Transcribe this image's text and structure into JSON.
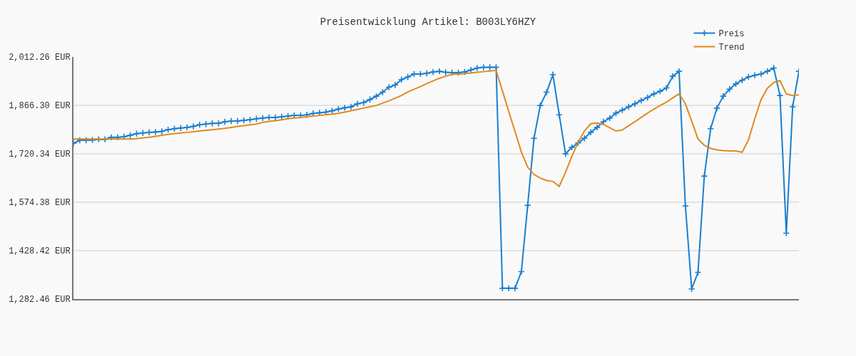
{
  "chart_data": {
    "type": "line",
    "title": "Preisentwicklung Artikel: B003LY6HZY",
    "categories": [
      null,
      null,
      null,
      null,
      null,
      null,
      null,
      null,
      null,
      null,
      null,
      null,
      null,
      null,
      null,
      null,
      null,
      null,
      null,
      null,
      null,
      null,
      null,
      null,
      null,
      null,
      null,
      null,
      null,
      null,
      null,
      null,
      null,
      null,
      null,
      null,
      null,
      null,
      null,
      null,
      null,
      null,
      null,
      null,
      null,
      null,
      null,
      null,
      null,
      null,
      null,
      null,
      null,
      null,
      null,
      null,
      null,
      null,
      null,
      null,
      null,
      null,
      null,
      null,
      null,
      null,
      null,
      null,
      null,
      null,
      null,
      null,
      null,
      null,
      null,
      null,
      null,
      null,
      null,
      null,
      null,
      null,
      null,
      null,
      null,
      null,
      null,
      null,
      null,
      null,
      null,
      null,
      null,
      null,
      null,
      null,
      null,
      null,
      null,
      null,
      null,
      null,
      null,
      null,
      null,
      null,
      null,
      null,
      null,
      null,
      null,
      null,
      null,
      null,
      null,
      null
    ],
    "series": [
      {
        "name": "Preis",
        "color": "#1a7fcf",
        "marker": "cross",
        "values": [
          1752,
          1761,
          1761,
          1762,
          1764,
          1764,
          1770,
          1770,
          1772,
          1776,
          1781,
          1783,
          1785,
          1786,
          1788,
          1793,
          1796,
          1798,
          1800,
          1803,
          1808,
          1810,
          1812,
          1812,
          1817,
          1819,
          1819,
          1821,
          1823,
          1826,
          1828,
          1830,
          1830,
          1832,
          1834,
          1836,
          1836,
          1838,
          1842,
          1844,
          1846,
          1850,
          1855,
          1859,
          1862,
          1871,
          1875,
          1884,
          1894,
          1906,
          1921,
          1928,
          1944,
          1952,
          1961,
          1961,
          1963,
          1967,
          1969,
          1966,
          1965,
          1965,
          1967,
          1973,
          1979,
          1981,
          1981,
          1981,
          1315,
          1315,
          1315,
          1365,
          1565,
          1767,
          1866,
          1906,
          1959,
          1838,
          1720,
          1740,
          1753,
          1767,
          1785,
          1800,
          1817,
          1828,
          1843,
          1852,
          1862,
          1871,
          1881,
          1890,
          1901,
          1909,
          1919,
          1954,
          1969,
          1563,
          1313,
          1363,
          1653,
          1796,
          1858,
          1894,
          1915,
          1931,
          1942,
          1952,
          1957,
          1961,
          1969,
          1979,
          1896,
          1481,
          1862,
          1969
        ]
      },
      {
        "name": "Trend",
        "color": "#e08a1e",
        "marker": "none",
        "values": [
          1765,
          1765,
          1765,
          1765,
          1765,
          1765,
          1765,
          1765,
          1765,
          1765,
          1766,
          1768,
          1770,
          1773,
          1776,
          1779,
          1781,
          1783,
          1785,
          1787,
          1789,
          1791,
          1793,
          1795,
          1797,
          1800,
          1803,
          1805,
          1808,
          1810,
          1815,
          1818,
          1820,
          1823,
          1826,
          1828,
          1830,
          1832,
          1834,
          1836,
          1838,
          1840,
          1842,
          1846,
          1850,
          1854,
          1858,
          1862,
          1866,
          1873,
          1880,
          1888,
          1896,
          1907,
          1915,
          1923,
          1932,
          1940,
          1948,
          1954,
          1960,
          1961,
          1962,
          1964,
          1966,
          1968,
          1970,
          1972,
          1910,
          1848,
          1787,
          1726,
          1680,
          1658,
          1647,
          1640,
          1637,
          1622,
          1665,
          1712,
          1755,
          1789,
          1811,
          1813,
          1809,
          1799,
          1789,
          1792,
          1805,
          1817,
          1830,
          1843,
          1855,
          1866,
          1876,
          1889,
          1901,
          1871,
          1819,
          1765,
          1746,
          1737,
          1732,
          1730,
          1729,
          1729,
          1725,
          1762,
          1826,
          1884,
          1918,
          1935,
          1941,
          1901,
          1896,
          1898
        ]
      }
    ],
    "ylim": [
      1282.46,
      2012.26
    ],
    "yticks": [
      {
        "value": 1282.46,
        "label": "1,282.46 EUR"
      },
      {
        "value": 1428.42,
        "label": "1,428.42 EUR"
      },
      {
        "value": 1574.38,
        "label": "1,574.38 EUR"
      },
      {
        "value": 1720.34,
        "label": "1,720.34 EUR"
      },
      {
        "value": 1866.3,
        "label": "1,866.30 EUR"
      },
      {
        "value": 2012.26,
        "label": "2,012.26 EUR"
      }
    ],
    "grid": "y",
    "legend": "top right",
    "tick_labels": "y",
    "line_style": "solid"
  }
}
